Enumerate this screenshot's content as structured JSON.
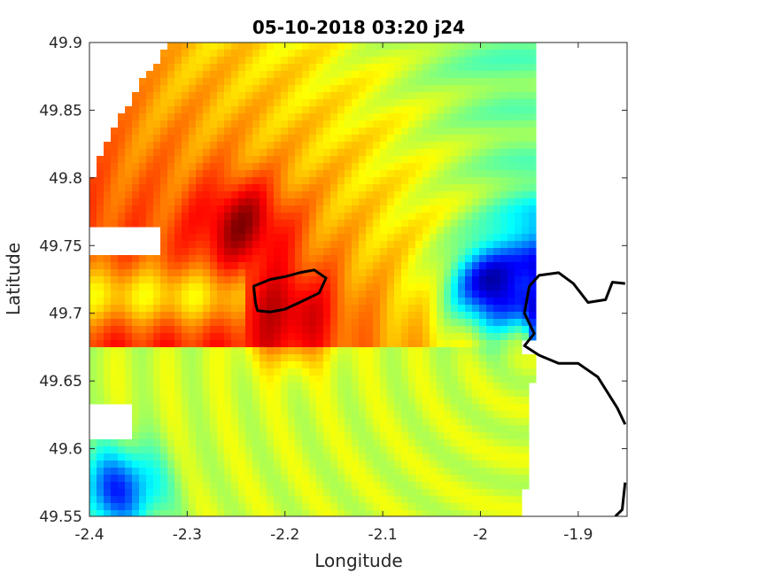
{
  "chart_data": {
    "type": "heatmap",
    "title": "05-10-2018 03:20 j24",
    "xlabel": "Longitude",
    "ylabel": "Latitude",
    "xlim": [
      -2.4,
      -1.85
    ],
    "ylim": [
      49.55,
      49.9
    ],
    "xticks": [
      -2.4,
      -2.3,
      -2.2,
      -2.1,
      -2,
      -1.9
    ],
    "xtick_labels": [
      "-2.4",
      "-2.3",
      "-2.2",
      "-2.1",
      "-2",
      "-1.9"
    ],
    "yticks": [
      49.55,
      49.6,
      49.65,
      49.7,
      49.75,
      49.8,
      49.85,
      49.9
    ],
    "ytick_labels": [
      "49.55",
      "49.6",
      "49.65",
      "49.7",
      "49.75",
      "49.8",
      "49.85",
      "49.9"
    ],
    "colormap": "jet",
    "radar_center": [
      -1.95,
      49.675
    ],
    "data_east_edge_lon": -1.95,
    "features": [
      {
        "kind": "max",
        "lon": -2.245,
        "lat": 49.765,
        "level": 0.97
      },
      {
        "kind": "max",
        "lon": -2.195,
        "lat": 49.7,
        "level": 0.93
      },
      {
        "kind": "min",
        "lon": -1.985,
        "lat": 49.72,
        "level": 0.03
      },
      {
        "kind": "min",
        "lon": -2.37,
        "lat": 49.57,
        "level": 0.18
      }
    ],
    "coastlines": [
      {
        "name": "island",
        "points": [
          [
            -2.23,
            49.707
          ],
          [
            -2.232,
            49.72
          ],
          [
            -2.215,
            49.725
          ],
          [
            -2.2,
            49.727
          ],
          [
            -2.185,
            49.73
          ],
          [
            -2.17,
            49.732
          ],
          [
            -2.158,
            49.726
          ],
          [
            -2.165,
            49.715
          ],
          [
            -2.185,
            49.708
          ],
          [
            -2.2,
            49.703
          ],
          [
            -2.215,
            49.701
          ],
          [
            -2.228,
            49.702
          ],
          [
            -2.23,
            49.707
          ]
        ]
      },
      {
        "name": "mainland-north",
        "points": [
          [
            -1.95,
            49.72
          ],
          [
            -1.94,
            49.728
          ],
          [
            -1.92,
            49.73
          ],
          [
            -1.905,
            49.722
          ],
          [
            -1.89,
            49.708
          ],
          [
            -1.872,
            49.71
          ],
          [
            -1.865,
            49.723
          ],
          [
            -1.852,
            49.722
          ]
        ]
      },
      {
        "name": "mainland-west",
        "points": [
          [
            -1.95,
            49.72
          ],
          [
            -1.955,
            49.7
          ],
          [
            -1.945,
            49.685
          ],
          [
            -1.955,
            49.676
          ],
          [
            -1.94,
            49.669
          ],
          [
            -1.92,
            49.663
          ],
          [
            -1.9,
            49.663
          ],
          [
            -1.88,
            49.653
          ],
          [
            -1.86,
            49.63
          ],
          [
            -1.852,
            49.618
          ]
        ]
      },
      {
        "name": "mainland-south",
        "points": [
          [
            -1.862,
            49.55
          ],
          [
            -1.855,
            49.555
          ],
          [
            -1.852,
            49.575
          ]
        ]
      }
    ]
  }
}
